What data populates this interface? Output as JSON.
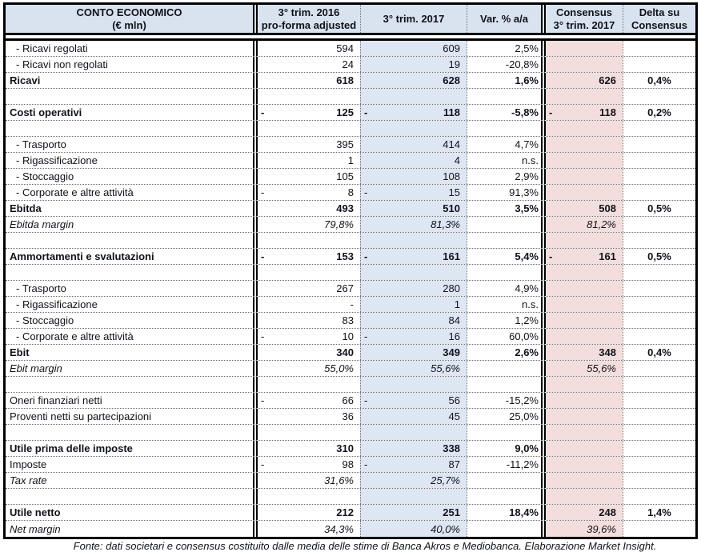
{
  "colors": {
    "header_bg": "#d9e2ef",
    "col_2017_bg": "#dde6f2",
    "consensus_bg": "#f3dedd",
    "border": "#000000",
    "grid": "#707070",
    "text": "#10131a"
  },
  "header": {
    "columns": [
      {
        "id": "label",
        "lines": [
          "CONTO ECONOMICO",
          "(€ mln)"
        ]
      },
      {
        "id": "trim2016",
        "lines": [
          "3° trim. 2016",
          "pro-forma adjusted"
        ]
      },
      {
        "id": "trim2017",
        "lines": [
          "3° trim. 2017"
        ]
      },
      {
        "id": "var",
        "lines": [
          "Var. % a/a"
        ]
      },
      {
        "id": "consensus",
        "lines": [
          "Consensus",
          "3° trim. 2017"
        ]
      },
      {
        "id": "delta",
        "lines": [
          "Delta su",
          "Consensus"
        ]
      }
    ]
  },
  "rows": [
    {
      "style": "sub",
      "label": "- Ricavi regolati",
      "y2016": "594",
      "y2017": "609",
      "var": "2,5%",
      "cons": "",
      "delta": ""
    },
    {
      "style": "sub",
      "label": "- Ricavi non regolati",
      "y2016": "24",
      "y2017": "19",
      "var": "-20,8%",
      "cons": "",
      "delta": ""
    },
    {
      "style": "total",
      "label": "Ricavi",
      "y2016": "618",
      "y2017": "628",
      "var": "1,6%",
      "cons": "626",
      "delta": "0,4%"
    },
    {
      "style": "empty",
      "label": "",
      "y2016": "",
      "y2017": "",
      "var": "",
      "cons": "",
      "delta": ""
    },
    {
      "style": "total",
      "label": "Costi operativi",
      "y2016": "-125",
      "y2017": "-118",
      "var": "-5,8%",
      "cons": "-118",
      "delta": "0,2%"
    },
    {
      "style": "empty",
      "label": "",
      "y2016": "",
      "y2017": "",
      "var": "",
      "cons": "",
      "delta": ""
    },
    {
      "style": "sub",
      "label": "- Trasporto",
      "y2016": "395",
      "y2017": "414",
      "var": "4,7%",
      "cons": "",
      "delta": ""
    },
    {
      "style": "sub",
      "label": "- Rigassificazione",
      "y2016": "1",
      "y2017": "4",
      "var": "n.s.",
      "cons": "",
      "delta": ""
    },
    {
      "style": "sub",
      "label": "- Stoccaggio",
      "y2016": "105",
      "y2017": "108",
      "var": "2,9%",
      "cons": "",
      "delta": ""
    },
    {
      "style": "sub",
      "label": "- Corporate e altre attività",
      "y2016": "-8",
      "y2017": "-15",
      "var": "91,3%",
      "cons": "",
      "delta": ""
    },
    {
      "style": "total",
      "label": "Ebitda",
      "y2016": "493",
      "y2017": "510",
      "var": "3,5%",
      "cons": "508",
      "delta": "0,5%"
    },
    {
      "style": "margin",
      "label": "Ebitda margin",
      "y2016": "79,8%",
      "y2017": "81,3%",
      "var": "",
      "cons": "81,2%",
      "delta": ""
    },
    {
      "style": "empty",
      "label": "",
      "y2016": "",
      "y2017": "",
      "var": "",
      "cons": "",
      "delta": ""
    },
    {
      "style": "total",
      "label": "Ammortamenti e svalutazioni",
      "y2016": "-153",
      "y2017": "-161",
      "var": "5,4%",
      "cons": "-161",
      "delta": "0,5%"
    },
    {
      "style": "empty",
      "label": "",
      "y2016": "",
      "y2017": "",
      "var": "",
      "cons": "",
      "delta": ""
    },
    {
      "style": "sub",
      "label": "- Trasporto",
      "y2016": "267",
      "y2017": "280",
      "var": "4,9%",
      "cons": "",
      "delta": ""
    },
    {
      "style": "sub",
      "label": "- Rigassificazione",
      "y2016": "-",
      "y2017": "1",
      "var": "n.s.",
      "cons": "",
      "delta": ""
    },
    {
      "style": "sub",
      "label": "- Stoccaggio",
      "y2016": "83",
      "y2017": "84",
      "var": "1,2%",
      "cons": "",
      "delta": ""
    },
    {
      "style": "sub",
      "label": "- Corporate e altre attività",
      "y2016": "-10",
      "y2017": "-16",
      "var": "60,0%",
      "cons": "",
      "delta": ""
    },
    {
      "style": "total",
      "label": "Ebit",
      "y2016": "340",
      "y2017": "349",
      "var": "2,6%",
      "cons": "348",
      "delta": "0,4%"
    },
    {
      "style": "margin",
      "label": "Ebit margin",
      "y2016": "55,0%",
      "y2017": "55,6%",
      "var": "",
      "cons": "55,6%",
      "delta": ""
    },
    {
      "style": "empty",
      "label": "",
      "y2016": "",
      "y2017": "",
      "var": "",
      "cons": "",
      "delta": ""
    },
    {
      "style": "item",
      "label": "Oneri finanziari netti",
      "y2016": "-66",
      "y2017": "-56",
      "var": "-15,2%",
      "cons": "",
      "delta": ""
    },
    {
      "style": "item",
      "label": "Proventi netti su partecipazioni",
      "y2016": "36",
      "y2017": "45",
      "var": "25,0%",
      "cons": "",
      "delta": ""
    },
    {
      "style": "empty",
      "label": "",
      "y2016": "",
      "y2017": "",
      "var": "",
      "cons": "",
      "delta": ""
    },
    {
      "style": "total",
      "label": "Utile prima delle imposte",
      "y2016": "310",
      "y2017": "338",
      "var": "9,0%",
      "cons": "",
      "delta": ""
    },
    {
      "style": "item",
      "label": "Imposte",
      "y2016": "-98",
      "y2017": "-87",
      "var": "-11,2%",
      "cons": "",
      "delta": ""
    },
    {
      "style": "margin",
      "label": "Tax rate",
      "y2016": "31,6%",
      "y2017": "25,7%",
      "var": "",
      "cons": "",
      "delta": ""
    },
    {
      "style": "empty",
      "label": "",
      "y2016": "",
      "y2017": "",
      "var": "",
      "cons": "",
      "delta": ""
    },
    {
      "style": "total",
      "label": "Utile netto",
      "y2016": "212",
      "y2017": "251",
      "var": "18,4%",
      "cons": "248",
      "delta": "1,4%"
    },
    {
      "style": "margin",
      "label": "Net margin",
      "y2016": "34,3%",
      "y2017": "40,0%",
      "var": "",
      "cons": "39,6%",
      "delta": ""
    }
  ],
  "footer": {
    "source": "Fonte: dati societari e consensus costituito dalle media delle stime di Banca Akros  e Mediobanca. Elaborazione Market Insight."
  }
}
